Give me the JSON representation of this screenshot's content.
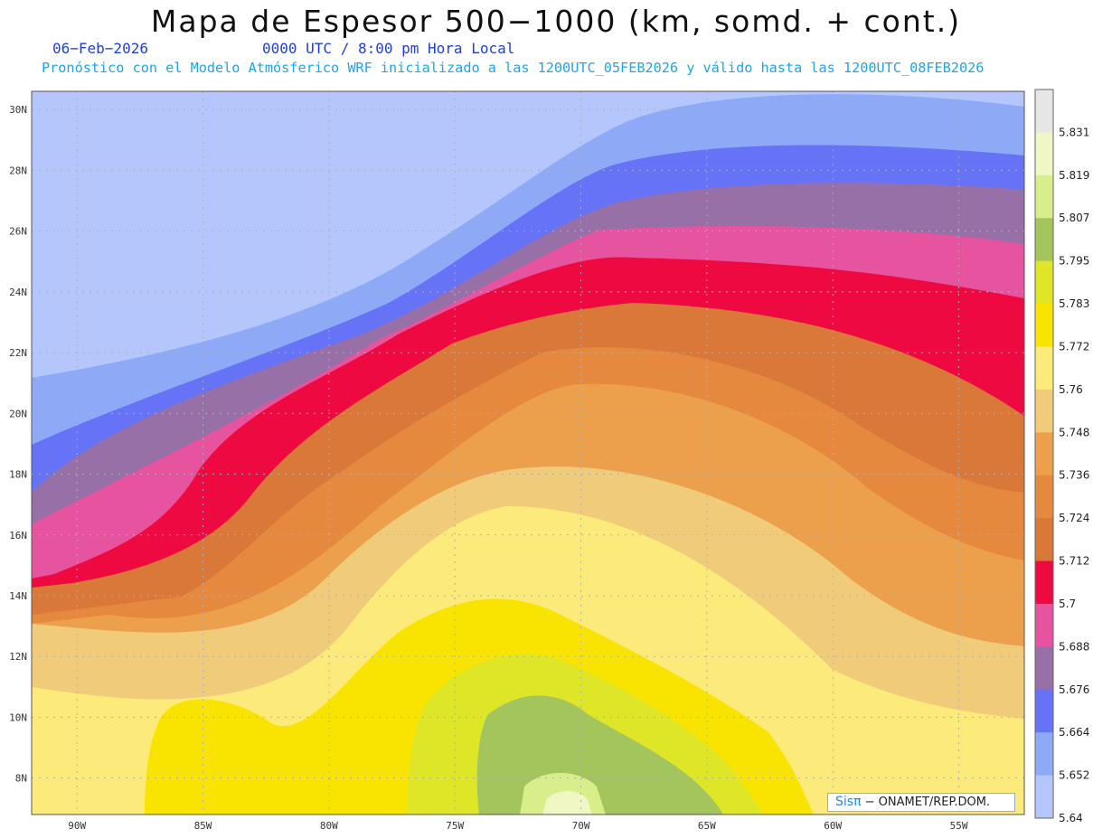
{
  "header": {
    "title": "Mapa de Espesor 500−1000 (km, somd. + cont.)",
    "date": "06−Feb−2026",
    "time_label": "0000 UTC / 8:00 pm Hora Local",
    "forecast_note": "Pronóstico con el Modelo Atmósferico WRF inicializado a las 1200UTC_05FEB2026 y válido hasta las  1200UTC_08FEB2026"
  },
  "colors": {
    "title": "#111111",
    "date_text": "#1f3fd6",
    "note_text": "#1ea5e8",
    "coastline": "#000000",
    "grid": "#a8b0c0"
  },
  "map": {
    "type": "contour-filled",
    "region": "Caribbean",
    "lat_labels": [
      "30N",
      "28N",
      "26N",
      "24N",
      "22N",
      "20N",
      "18N",
      "16N",
      "14N",
      "12N",
      "10N",
      "8N"
    ],
    "lon_labels": [
      "90W",
      "85W",
      "80W",
      "75W",
      "70W",
      "65W",
      "60W",
      "55W"
    ],
    "lat_values": [
      30,
      28,
      26,
      24,
      22,
      20,
      18,
      16,
      14,
      12,
      10,
      8
    ],
    "lon_values": [
      -90,
      -85,
      -80,
      -75,
      -70,
      -65,
      -60,
      -55
    ],
    "lat_range": [
      6.8,
      30.6
    ],
    "lon_range": [
      -91.8,
      -52.4
    ],
    "grid": "dotted"
  },
  "colorbar": {
    "tick_labels": [
      "5.831",
      "5.819",
      "5.807",
      "5.795",
      "5.783",
      "5.772",
      "5.76",
      "5.748",
      "5.736",
      "5.724",
      "5.712",
      "5.7",
      "5.688",
      "5.676",
      "5.664",
      "5.652",
      "5.64"
    ],
    "colors": [
      "#e6e6e6",
      "#f0f6c4",
      "#d8ee8a",
      "#a4c55c",
      "#dfe627",
      "#f8e400",
      "#fceb7a",
      "#f0cc7a",
      "#eca04c",
      "#e4893d",
      "#d97838",
      "#ee0a40",
      "#e654a0",
      "#9870a8",
      "#6673f6",
      "#8ea9f6",
      "#b4c6fc"
    ]
  },
  "credit": {
    "logo_text": "Sisπ",
    "text": "− ONAMET/REP.DOM."
  }
}
